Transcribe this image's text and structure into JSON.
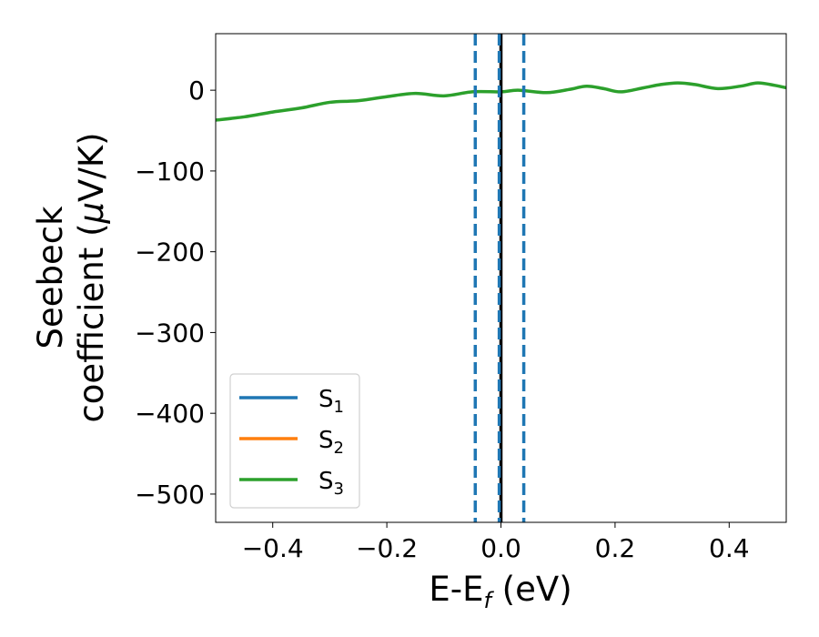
{
  "chart_data": {
    "type": "line",
    "xlabel": {
      "main": "E-E",
      "sub": "f",
      "unit": " (eV)"
    },
    "ylabel": {
      "line1": "Seebeck",
      "line2_text": "coefficient  (",
      "line2_mu": "μ",
      "line2_rest": "V/K)"
    },
    "xlim": [
      -0.5,
      0.5
    ],
    "ylim": [
      -535,
      70
    ],
    "x_ticks": [
      -0.4,
      -0.2,
      0.0,
      0.2,
      0.4
    ],
    "x_tick_labels": [
      "−0.4",
      "−0.2",
      "0.0",
      "0.2",
      "0.4"
    ],
    "y_ticks": [
      0,
      -100,
      -200,
      -300,
      -400,
      -500
    ],
    "y_tick_labels": [
      "0",
      "−100",
      "−200",
      "−300",
      "−400",
      "−500"
    ],
    "grid": false,
    "legend_placement": "lower-left",
    "series": [
      {
        "name": "S",
        "sub": "1",
        "color": "#1f77b4",
        "x": [],
        "y": []
      },
      {
        "name": "S",
        "sub": "2",
        "color": "#ff7f0e",
        "x": [],
        "y": []
      },
      {
        "name": "S",
        "sub": "3",
        "color": "#2ca02c",
        "x": [
          -0.5,
          -0.45,
          -0.4,
          -0.35,
          -0.3,
          -0.25,
          -0.2,
          -0.15,
          -0.1,
          -0.05,
          0.0,
          0.03,
          0.08,
          0.12,
          0.15,
          0.18,
          0.21,
          0.25,
          0.28,
          0.31,
          0.34,
          0.38,
          0.42,
          0.45,
          0.48,
          0.5
        ],
        "y": [
          -37,
          -33,
          -27,
          -22,
          -15,
          -13,
          -8,
          -4,
          -7,
          -2,
          -2,
          0,
          -3,
          1,
          5,
          2,
          -2,
          3,
          7,
          9,
          7,
          2,
          5,
          9,
          6,
          3
        ]
      }
    ],
    "vlines": [
      {
        "x": 0.0,
        "style": "solid",
        "color": "#000000"
      },
      {
        "x": -0.045,
        "style": "dashed",
        "color": "#1f77b4"
      },
      {
        "x": -0.003,
        "style": "dashed",
        "color": "#1f77b4"
      },
      {
        "x": 0.04,
        "style": "dashed",
        "color": "#1f77b4"
      }
    ]
  }
}
